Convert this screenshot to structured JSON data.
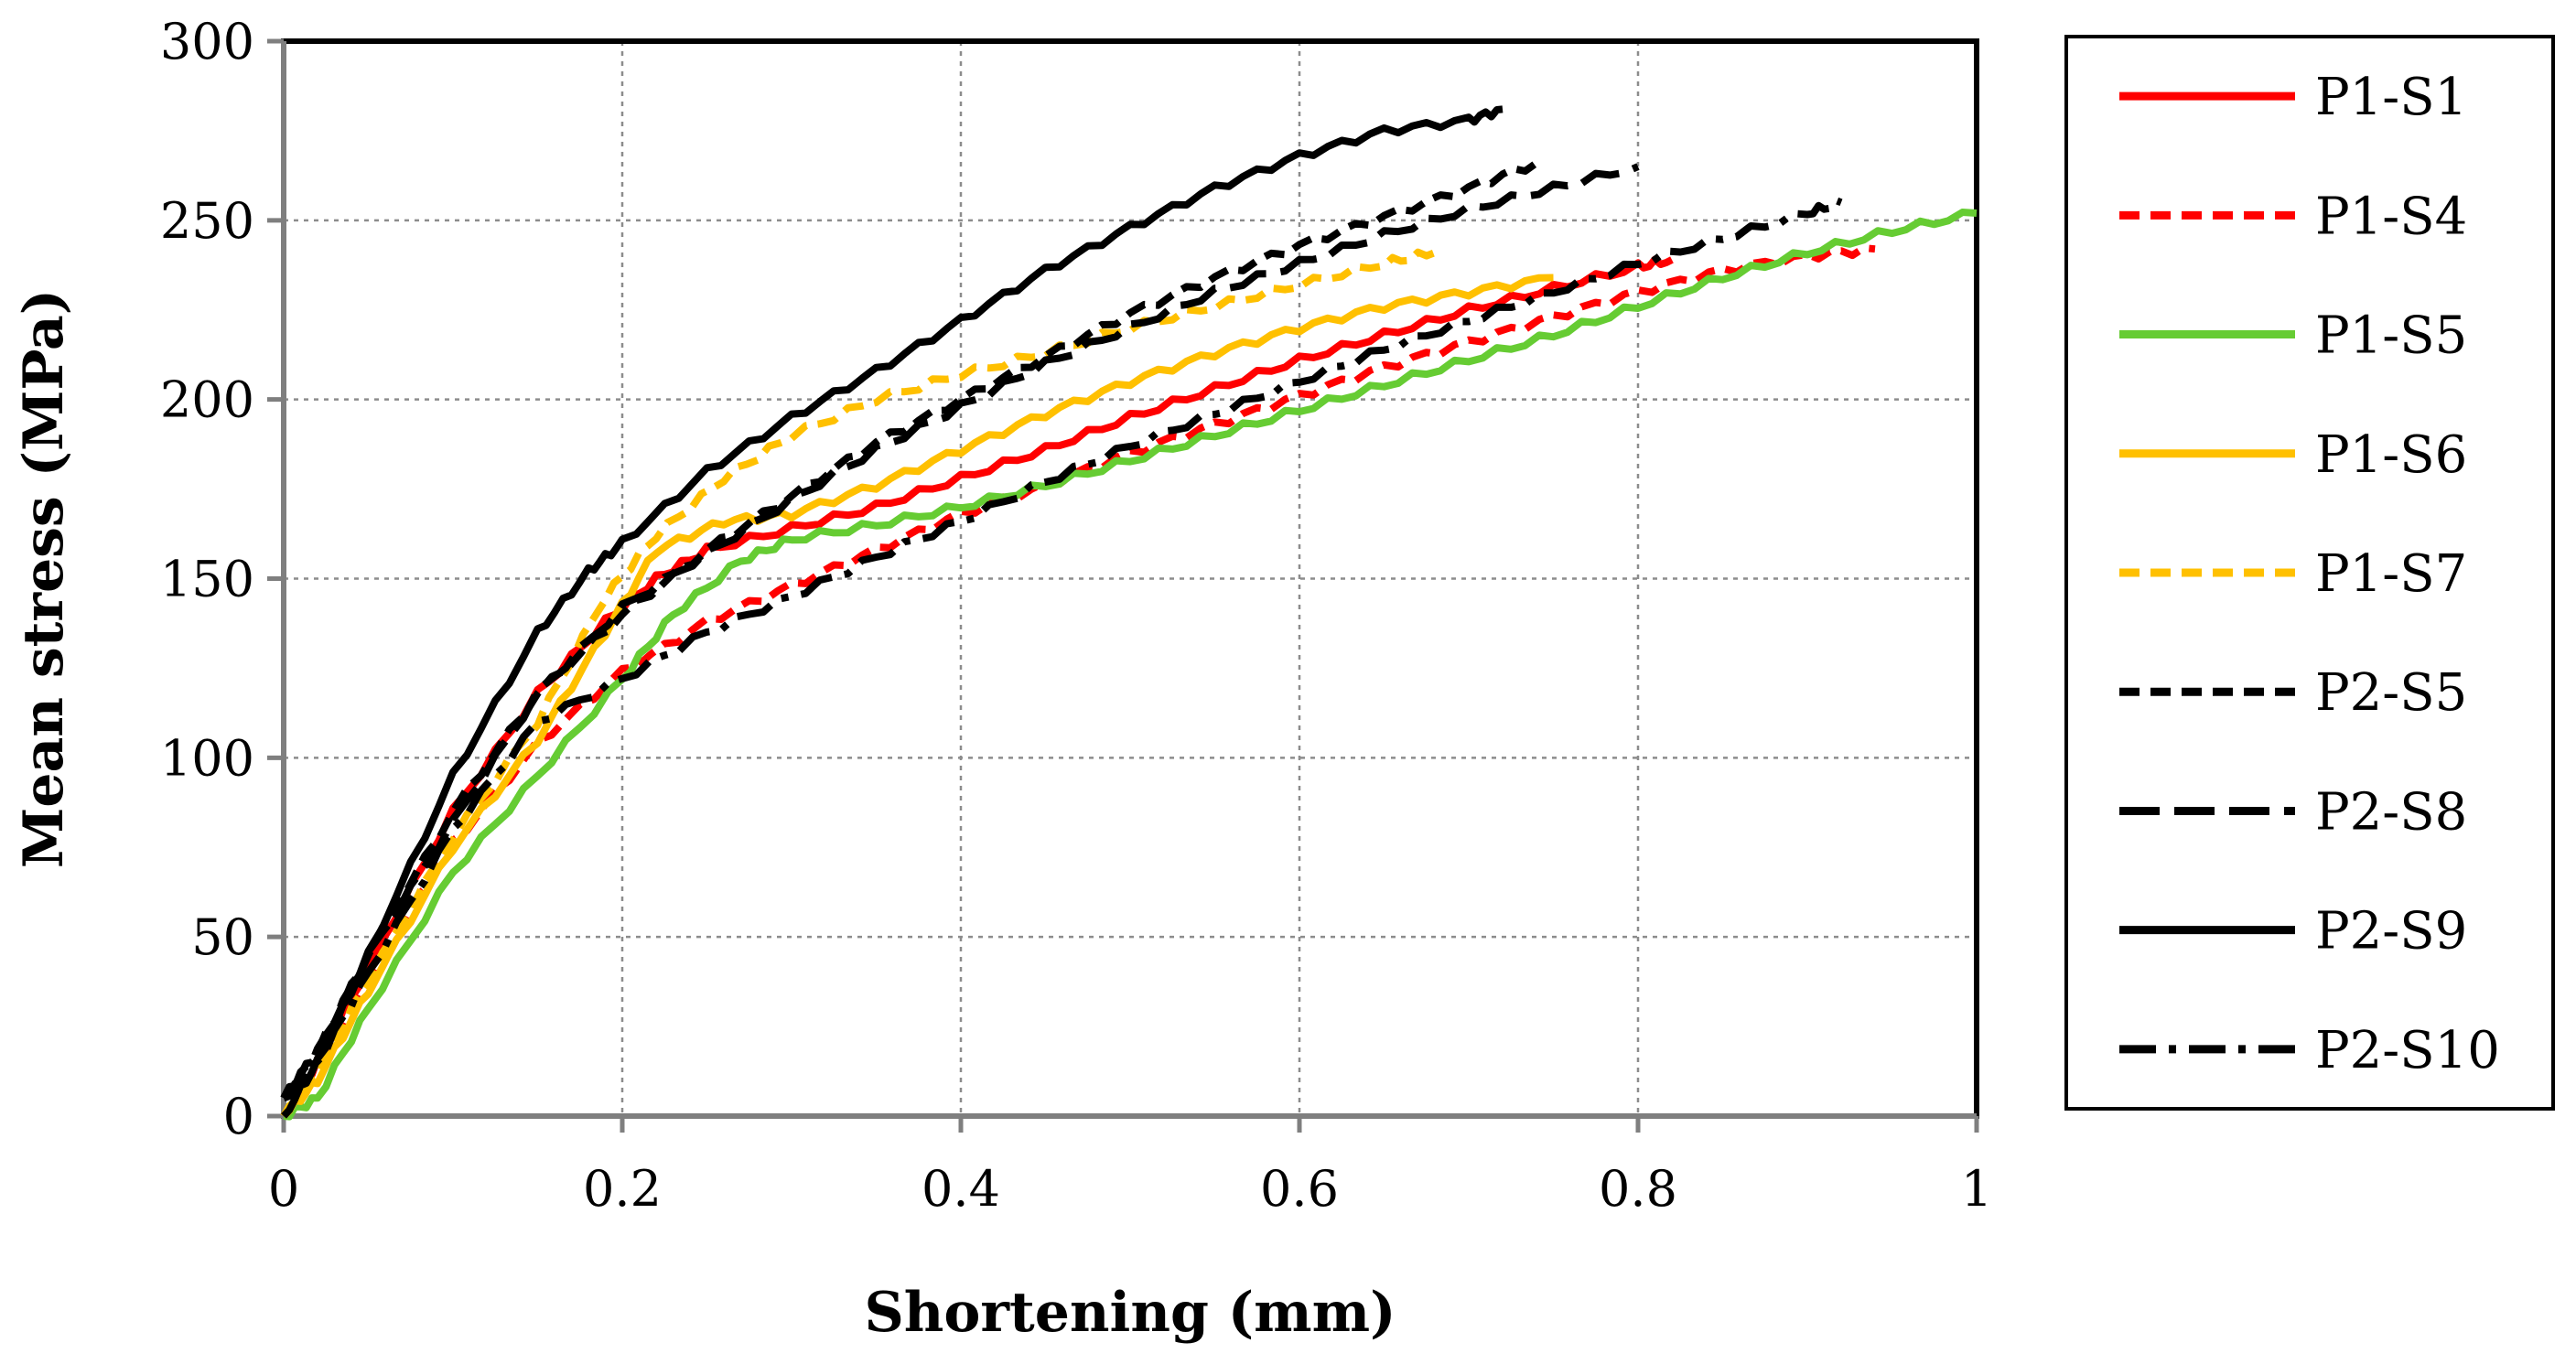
{
  "chart_data": {
    "type": "line",
    "title": "",
    "xlabel": "Shortening (mm)",
    "ylabel": "Mean stress (MPa)",
    "xlim": [
      0,
      1
    ],
    "ylim": [
      0,
      300
    ],
    "xticks": [
      0,
      0.2,
      0.4,
      0.6,
      0.8,
      1
    ],
    "xtick_labels": [
      "0",
      "0.2",
      "0.4",
      "0.6",
      "0.8",
      "1"
    ],
    "yticks": [
      0,
      50,
      100,
      150,
      200,
      250,
      300
    ],
    "ytick_labels": [
      "0",
      "50",
      "100",
      "150",
      "200",
      "250",
      "300"
    ],
    "grid": true,
    "legend_position": "right",
    "series": [
      {
        "name": "P1-S1",
        "color": "#ff0000",
        "dash": "solid",
        "points": [
          [
            0,
            0
          ],
          [
            0.02,
            15
          ],
          [
            0.05,
            42
          ],
          [
            0.1,
            85
          ],
          [
            0.15,
            118
          ],
          [
            0.19,
            138
          ],
          [
            0.22,
            150
          ],
          [
            0.25,
            158
          ],
          [
            0.3,
            164
          ],
          [
            0.35,
            170
          ],
          [
            0.4,
            178
          ],
          [
            0.45,
            186
          ],
          [
            0.5,
            195
          ],
          [
            0.55,
            203
          ],
          [
            0.6,
            211
          ],
          [
            0.65,
            218
          ],
          [
            0.7,
            225
          ],
          [
            0.75,
            231
          ],
          [
            0.8,
            237
          ],
          [
            0.82,
            239
          ]
        ]
      },
      {
        "name": "P1-S4",
        "color": "#ff0000",
        "dash": "dashed",
        "points": [
          [
            0,
            0
          ],
          [
            0.03,
            20
          ],
          [
            0.06,
            46
          ],
          [
            0.1,
            76
          ],
          [
            0.15,
            104
          ],
          [
            0.2,
            124
          ],
          [
            0.25,
            138
          ],
          [
            0.3,
            148
          ],
          [
            0.35,
            158
          ],
          [
            0.4,
            168
          ],
          [
            0.45,
            176
          ],
          [
            0.5,
            185
          ],
          [
            0.55,
            193
          ],
          [
            0.6,
            201
          ],
          [
            0.65,
            209
          ],
          [
            0.7,
            216
          ],
          [
            0.75,
            223
          ],
          [
            0.8,
            230
          ],
          [
            0.85,
            236
          ],
          [
            0.9,
            240
          ],
          [
            0.94,
            242
          ]
        ]
      },
      {
        "name": "P1-S5",
        "color": "#66cc33",
        "dash": "solid",
        "points": [
          [
            0,
            0
          ],
          [
            0.02,
            5
          ],
          [
            0.05,
            30
          ],
          [
            0.1,
            68
          ],
          [
            0.15,
            95
          ],
          [
            0.2,
            122
          ],
          [
            0.23,
            140
          ],
          [
            0.27,
            155
          ],
          [
            0.3,
            161
          ],
          [
            0.35,
            165
          ],
          [
            0.4,
            170
          ],
          [
            0.45,
            176
          ],
          [
            0.5,
            183
          ],
          [
            0.55,
            190
          ],
          [
            0.6,
            197
          ],
          [
            0.65,
            204
          ],
          [
            0.7,
            211
          ],
          [
            0.75,
            218
          ],
          [
            0.8,
            226
          ],
          [
            0.85,
            234
          ],
          [
            0.9,
            241
          ],
          [
            0.95,
            247
          ],
          [
            1.0,
            252
          ]
        ]
      },
      {
        "name": "P1-S6",
        "color": "#ffc000",
        "dash": "solid",
        "points": [
          [
            0,
            0
          ],
          [
            0.02,
            10
          ],
          [
            0.05,
            35
          ],
          [
            0.1,
            75
          ],
          [
            0.15,
            105
          ],
          [
            0.19,
            135
          ],
          [
            0.22,
            158
          ],
          [
            0.26,
            166
          ],
          [
            0.3,
            168
          ],
          [
            0.35,
            176
          ],
          [
            0.4,
            186
          ],
          [
            0.45,
            196
          ],
          [
            0.5,
            205
          ],
          [
            0.55,
            213
          ],
          [
            0.6,
            220
          ],
          [
            0.65,
            226
          ],
          [
            0.7,
            230
          ],
          [
            0.75,
            234
          ]
        ]
      },
      {
        "name": "P1-S7",
        "color": "#ffc000",
        "dash": "dashed",
        "points": [
          [
            0,
            0
          ],
          [
            0.02,
            12
          ],
          [
            0.05,
            38
          ],
          [
            0.1,
            78
          ],
          [
            0.15,
            110
          ],
          [
            0.19,
            145
          ],
          [
            0.22,
            162
          ],
          [
            0.26,
            178
          ],
          [
            0.3,
            190
          ],
          [
            0.35,
            200
          ],
          [
            0.4,
            207
          ],
          [
            0.45,
            213
          ],
          [
            0.5,
            220
          ],
          [
            0.55,
            226
          ],
          [
            0.6,
            232
          ],
          [
            0.65,
            238
          ],
          [
            0.68,
            241
          ]
        ]
      },
      {
        "name": "P2-S5",
        "color": "#000000",
        "dash": "dashed",
        "points": [
          [
            0,
            5
          ],
          [
            0.02,
            18
          ],
          [
            0.05,
            45
          ],
          [
            0.1,
            85
          ],
          [
            0.15,
            118
          ],
          [
            0.2,
            140
          ],
          [
            0.25,
            158
          ],
          [
            0.3,
            173
          ],
          [
            0.35,
            188
          ],
          [
            0.4,
            200
          ],
          [
            0.45,
            212
          ],
          [
            0.5,
            224
          ],
          [
            0.55,
            234
          ],
          [
            0.6,
            243
          ],
          [
            0.65,
            251
          ],
          [
            0.7,
            259
          ],
          [
            0.74,
            266
          ]
        ]
      },
      {
        "name": "P2-S8",
        "color": "#000000",
        "dash": "longdash",
        "points": [
          [
            0,
            5
          ],
          [
            0.02,
            18
          ],
          [
            0.05,
            45
          ],
          [
            0.1,
            82
          ],
          [
            0.15,
            118
          ],
          [
            0.2,
            142
          ],
          [
            0.25,
            157
          ],
          [
            0.3,
            172
          ],
          [
            0.35,
            186
          ],
          [
            0.4,
            198
          ],
          [
            0.45,
            210
          ],
          [
            0.5,
            220
          ],
          [
            0.55,
            230
          ],
          [
            0.6,
            238
          ],
          [
            0.65,
            246
          ],
          [
            0.7,
            253
          ],
          [
            0.75,
            259
          ],
          [
            0.8,
            265
          ]
        ]
      },
      {
        "name": "P2-S9",
        "color": "#000000",
        "dash": "solid",
        "points": [
          [
            0,
            0
          ],
          [
            0.02,
            15
          ],
          [
            0.05,
            45
          ],
          [
            0.1,
            95
          ],
          [
            0.15,
            135
          ],
          [
            0.18,
            152
          ],
          [
            0.2,
            160
          ],
          [
            0.25,
            180
          ],
          [
            0.3,
            195
          ],
          [
            0.35,
            208
          ],
          [
            0.4,
            222
          ],
          [
            0.45,
            236
          ],
          [
            0.5,
            248
          ],
          [
            0.55,
            259
          ],
          [
            0.6,
            268
          ],
          [
            0.65,
            275
          ],
          [
            0.7,
            278
          ],
          [
            0.72,
            281
          ]
        ]
      },
      {
        "name": "P2-S10",
        "color": "#000000",
        "dash": "dashdot",
        "points": [
          [
            0,
            5
          ],
          [
            0.02,
            15
          ],
          [
            0.05,
            40
          ],
          [
            0.1,
            80
          ],
          [
            0.15,
            110
          ],
          [
            0.2,
            122
          ],
          [
            0.25,
            135
          ],
          [
            0.3,
            145
          ],
          [
            0.35,
            156
          ],
          [
            0.4,
            166
          ],
          [
            0.45,
            177
          ],
          [
            0.5,
            187
          ],
          [
            0.55,
            196
          ],
          [
            0.6,
            205
          ],
          [
            0.65,
            214
          ],
          [
            0.7,
            222
          ],
          [
            0.75,
            230
          ],
          [
            0.8,
            238
          ],
          [
            0.85,
            245
          ],
          [
            0.9,
            252
          ],
          [
            0.92,
            255
          ]
        ]
      }
    ]
  }
}
